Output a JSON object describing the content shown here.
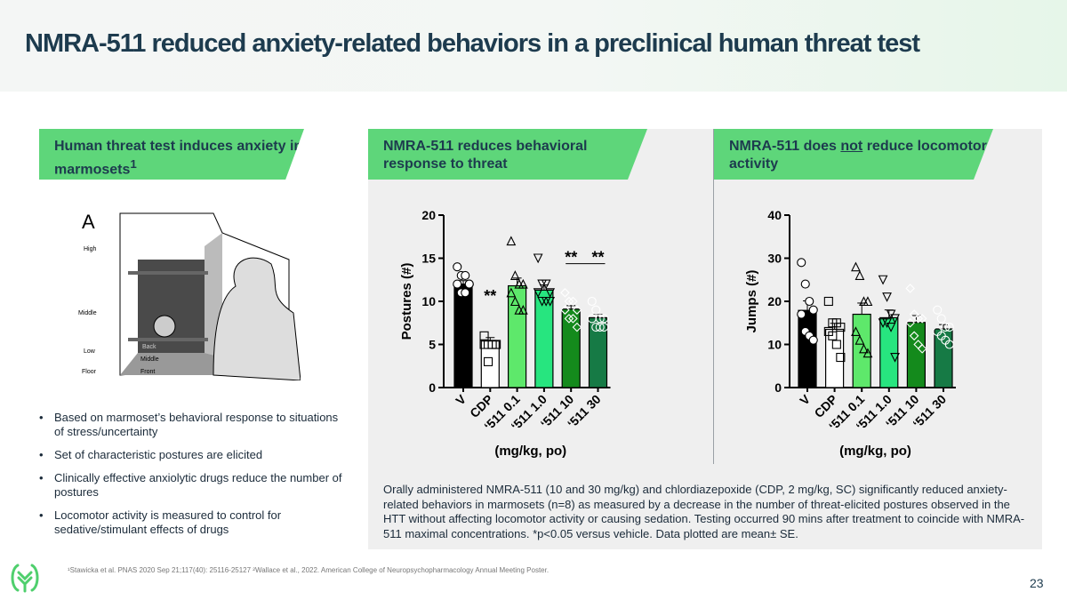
{
  "title": "NMRA-511 reduced anxiety-related behaviors in a preclinical human threat test",
  "banners": {
    "left": {
      "text": "Human threat test induces anxiety in marmosets",
      "sup": "1"
    },
    "middle": {
      "text": "NMRA-511 reduces behavioral response to threat"
    },
    "right": {
      "pre": "NMRA-511 does ",
      "underlined": "not",
      "post": " reduce locomotor activity"
    }
  },
  "illustration": {
    "panel_letter": "A",
    "zones": [
      "High",
      "Middle",
      "Low",
      "Floor"
    ],
    "floor_labels": [
      "Back",
      "Middle",
      "Front"
    ]
  },
  "bullets": [
    "Based on marmoset’s behavioral response to situations of stress/uncertainty",
    "Set of characteristic postures are elicited",
    "Clinically effective anxiolytic drugs reduce the number of postures",
    "Locomotor activity is measured to control for sedative/stimulant effects of drugs"
  ],
  "caption": "Orally administered NMRA-511 (10 and 30 mg/kg) and chlordiazepoxide (CDP, 2 mg/kg, SC) significantly reduced anxiety-related behaviors in marmosets (n=8) as measured by a decrease in the number of threat-elicited postures observed in the HTT without affecting locomotor activity or causing sedation. Testing occurred 90 mins after treatment to coincide with NMRA-511 maximal concentrations. *p<0.05 versus vehicle. Data plotted are mean± SE.",
  "footnote": "¹Stawicka et al. PNAS 2020 Sep 21;117(40): 25116-25127 ²Wallace et al., 2022. American College of Neuropsychopharmacology Annual Meeting Poster.",
  "page_number": "23",
  "chart_data": [
    {
      "type": "bar",
      "ylabel": "Postures (#)",
      "xlabel": "(mg/kg, po)",
      "ylim": [
        0,
        20
      ],
      "yticks": [
        0,
        5,
        10,
        15,
        20
      ],
      "categories": [
        "V",
        "CDP",
        "'511 0.1",
        "'511 1.0",
        "'511 10",
        "'511 30"
      ],
      "colors": [
        "#000000",
        "#ffffff",
        "#5ee86b",
        "#27e57f",
        "#148a1c",
        "#167a45"
      ],
      "markers": [
        "circle",
        "square",
        "triangle-up",
        "triangle-down",
        "diamond",
        "circle"
      ],
      "values": [
        12,
        5.4,
        11.8,
        11.3,
        9.1,
        8.1
      ],
      "se": [
        0.4,
        0.4,
        0.9,
        0.6,
        0.4,
        0.4
      ],
      "points": [
        [
          14,
          13,
          13,
          12,
          12,
          11,
          11,
          12
        ],
        [
          6,
          5,
          5,
          5,
          5,
          3,
          5,
          5
        ],
        [
          17,
          13,
          12,
          12,
          11,
          10,
          9,
          9
        ],
        [
          15,
          12,
          12,
          11,
          11,
          10,
          10,
          10
        ],
        [
          11,
          10,
          10,
          9,
          9,
          8,
          8,
          7
        ],
        [
          10,
          9,
          8,
          8,
          8,
          7,
          7,
          7
        ]
      ],
      "significance": [
        {
          "category": "CDP",
          "label": "**",
          "y": 10.8
        },
        {
          "category": "'511 10",
          "label": "**",
          "y": 15.3
        },
        {
          "category": "'511 30",
          "label": "**",
          "y": 15.3
        }
      ]
    },
    {
      "type": "bar",
      "ylabel": "Jumps (#)",
      "xlabel": "(mg/kg, po)",
      "ylim": [
        0,
        40
      ],
      "yticks": [
        0,
        10,
        20,
        30,
        40
      ],
      "categories": [
        "V",
        "CDP",
        "'511 0.1",
        "'511 1.0",
        "'511 10",
        "'511 30"
      ],
      "colors": [
        "#000000",
        "#ffffff",
        "#5ee86b",
        "#27e57f",
        "#148a1c",
        "#167a45"
      ],
      "markers": [
        "circle",
        "square",
        "triangle-up",
        "triangle-down",
        "diamond",
        "circle"
      ],
      "values": [
        17.9,
        13.5,
        17,
        16.2,
        15.1,
        13.6
      ],
      "se": [
        2.2,
        1.4,
        2.6,
        1.8,
        1.6,
        1
      ],
      "points": [
        [
          29,
          24,
          20,
          18,
          17,
          13,
          12,
          11
        ],
        [
          20,
          15,
          15,
          14,
          13,
          12,
          10,
          7
        ],
        [
          28,
          26,
          20,
          20,
          13,
          11,
          9,
          8
        ],
        [
          25,
          21,
          17,
          16,
          15,
          15,
          14,
          7
        ],
        [
          23,
          17,
          16,
          16,
          15,
          12,
          10,
          9
        ],
        [
          18,
          16,
          14,
          14,
          13,
          12,
          11,
          10
        ]
      ],
      "significance": []
    }
  ]
}
